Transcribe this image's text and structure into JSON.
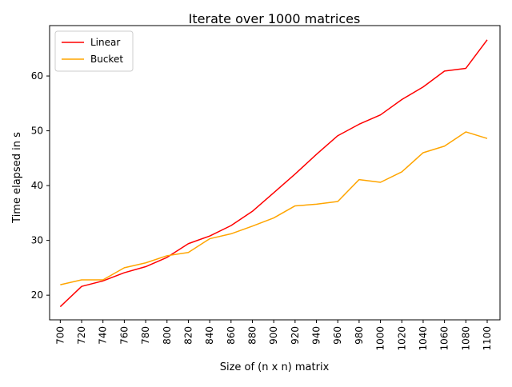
{
  "chart_data": {
    "type": "line",
    "title": "Iterate over 1000 matrices",
    "xlabel": "Size of (n x n) matrix",
    "ylabel": "Time elapsed in s",
    "x": [
      700,
      720,
      740,
      760,
      780,
      800,
      820,
      840,
      860,
      880,
      900,
      920,
      940,
      960,
      980,
      1000,
      1020,
      1040,
      1060,
      1080,
      1100
    ],
    "xticks": [
      "700",
      "720",
      "740",
      "760",
      "780",
      "800",
      "820",
      "840",
      "860",
      "880",
      "900",
      "920",
      "940",
      "960",
      "980",
      "1000",
      "1020",
      "1040",
      "1060",
      "1080",
      "1100"
    ],
    "yticks": [
      20,
      30,
      40,
      50,
      60
    ],
    "xlim": [
      690,
      1112
    ],
    "ylim": [
      15.5,
      69.2
    ],
    "grid": false,
    "legend_position": "top-left",
    "series": [
      {
        "name": "Linear",
        "color": "#ff0000",
        "values": [
          17.9,
          21.6,
          22.6,
          24.1,
          25.2,
          26.9,
          29.4,
          30.8,
          32.7,
          35.3,
          38.7,
          42.1,
          45.7,
          49.1,
          51.2,
          52.9,
          55.7,
          58.0,
          60.9,
          61.4,
          66.6
        ]
      },
      {
        "name": "Bucket",
        "color": "#ffa500",
        "values": [
          21.9,
          22.8,
          22.8,
          25.0,
          25.9,
          27.2,
          27.8,
          30.3,
          31.2,
          32.6,
          34.1,
          36.3,
          36.6,
          37.1,
          41.1,
          40.6,
          42.5,
          46.0,
          47.2,
          49.8,
          48.6
        ]
      }
    ]
  }
}
